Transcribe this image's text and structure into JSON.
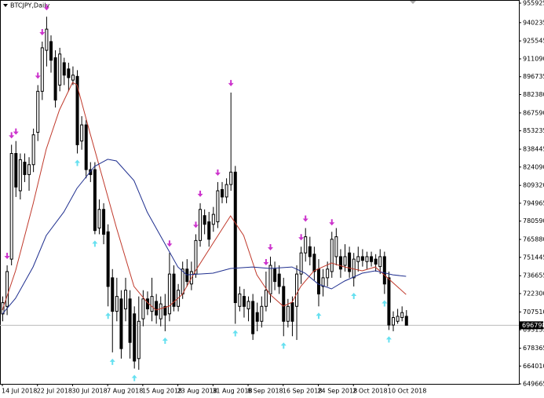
{
  "chart_data": {
    "type": "candlestick",
    "title": "BTCJPY,Daily",
    "categories": [
      "14 Jul 2018",
      null,
      null,
      null,
      null,
      null,
      null,
      null,
      "22 Jul 2018",
      null,
      null,
      null,
      null,
      null,
      null,
      null,
      "30 Jul 2018",
      null,
      null,
      null,
      null,
      null,
      null,
      null,
      "7 Aug 2018",
      null,
      null,
      null,
      null,
      null,
      null,
      null,
      "15 Aug 2018",
      null,
      null,
      null,
      null,
      null,
      null,
      null,
      "23 Aug 2018",
      null,
      null,
      null,
      null,
      null,
      null,
      null,
      "31 Aug 2018",
      null,
      null,
      null,
      null,
      null,
      null,
      null,
      "8 Sep 2018",
      null,
      null,
      null,
      null,
      null,
      null,
      null,
      "16 Sep 2018",
      null,
      null,
      null,
      null,
      null,
      null,
      null,
      "24 Sep 2018",
      null,
      null,
      null,
      null,
      null,
      null,
      null,
      "2 Oct 2018",
      null,
      null,
      null,
      null,
      null,
      null,
      null,
      "10 Oct 2018",
      null,
      null,
      null,
      null
    ],
    "open": [
      705900,
      712000,
      750000,
      835000,
      805000,
      828000,
      818000,
      826000,
      852000,
      885000,
      918000,
      925000,
      912000,
      890000,
      908000,
      903000,
      894000,
      897000,
      845000,
      858000,
      822000,
      822000,
      775000,
      790000,
      772000,
      735000,
      708000,
      718000,
      710000,
      718000,
      706000,
      670000,
      702000,
      718000,
      708000,
      716000,
      702000,
      712000,
      706000,
      738000,
      712000,
      722000,
      742000,
      730000,
      738000,
      765000,
      785000,
      780000,
      778000,
      780000,
      806000,
      800000,
      810000,
      820000,
      712000,
      720000,
      710000,
      716000,
      707000,
      700000,
      712000,
      722000,
      742000,
      738000,
      728000,
      700000,
      715000,
      712000,
      738000,
      755000,
      760000,
      754000,
      742000,
      728000,
      735000,
      740000,
      752000,
      752000,
      745000,
      755000,
      735000,
      748000,
      752000,
      748000,
      752000,
      750000,
      744000,
      752000,
      735000,
      697000,
      700000,
      703000,
      704000
    ],
    "high": [
      720000,
      745000,
      842000,
      845000,
      835000,
      835000,
      832000,
      855000,
      890000,
      925000,
      945000,
      930000,
      918000,
      920000,
      912000,
      908000,
      905000,
      902000,
      865000,
      862000,
      828000,
      828000,
      798000,
      795000,
      778000,
      742000,
      735000,
      725000,
      735000,
      725000,
      712000,
      720000,
      725000,
      724000,
      735000,
      722000,
      720000,
      722000,
      755000,
      745000,
      730000,
      748000,
      750000,
      748000,
      770000,
      795000,
      790000,
      788000,
      792000,
      812000,
      812000,
      815000,
      884000,
      825000,
      728000,
      726000,
      720000,
      722000,
      715000,
      720000,
      740000,
      752000,
      748000,
      745000,
      735000,
      718000,
      720000,
      745000,
      760000,
      775000,
      768000,
      760000,
      750000,
      742000,
      748000,
      772000,
      775000,
      758000,
      762000,
      760000,
      755000,
      760000,
      758000,
      756000,
      756000,
      754000,
      758000,
      756000,
      740000,
      708000,
      710000,
      712000,
      709000
    ],
    "low": [
      700000,
      705000,
      745000,
      800000,
      798000,
      812000,
      805000,
      820000,
      845000,
      878000,
      905000,
      900000,
      872000,
      885000,
      890000,
      885000,
      890000,
      835000,
      838000,
      815000,
      812000,
      770000,
      770000,
      762000,
      712000,
      675000,
      700000,
      670000,
      700000,
      670000,
      662000,
      661000,
      696000,
      705000,
      700000,
      698000,
      696000,
      692000,
      700000,
      708000,
      708000,
      718000,
      728000,
      725000,
      735000,
      760000,
      770000,
      760000,
      772000,
      775000,
      795000,
      795000,
      805000,
      698000,
      708000,
      703000,
      700000,
      685000,
      692000,
      695000,
      708000,
      715000,
      725000,
      722000,
      688000,
      695000,
      688000,
      685000,
      730000,
      748000,
      745000,
      733000,
      712000,
      720000,
      728000,
      735000,
      745000,
      735000,
      740000,
      735000,
      728000,
      740000,
      744000,
      742000,
      744000,
      740000,
      738000,
      722000,
      693000,
      692000,
      698000,
      700000,
      698000
    ],
    "close": [
      715000,
      740000,
      835000,
      808000,
      830000,
      818000,
      826000,
      850000,
      885000,
      920000,
      935000,
      910000,
      878000,
      915000,
      898000,
      896000,
      898000,
      842000,
      858000,
      822000,
      818000,
      773000,
      790000,
      770000,
      728000,
      708000,
      720000,
      678000,
      725000,
      683000,
      668000,
      700000,
      718000,
      710000,
      720000,
      705000,
      714000,
      705000,
      738000,
      712000,
      725000,
      742000,
      732000,
      740000,
      765000,
      790000,
      778000,
      766000,
      786000,
      805000,
      800000,
      810000,
      820000,
      715000,
      722000,
      712000,
      716000,
      690000,
      700000,
      712000,
      725000,
      745000,
      732000,
      728000,
      700000,
      712000,
      700000,
      738000,
      755000,
      768000,
      752000,
      740000,
      722000,
      735000,
      742000,
      766000,
      768000,
      742000,
      752000,
      740000,
      750000,
      752000,
      749000,
      752000,
      748000,
      746000,
      752000,
      730000,
      697000,
      703000,
      704000,
      707000,
      696798
    ],
    "current_price": 696798,
    "lines": [
      {
        "color": "#c0392b",
        "x": [
          0,
          3,
          7,
          10,
          13,
          16,
          17,
          20,
          23,
          26,
          30,
          33,
          35,
          38,
          41,
          44,
          48,
          52,
          55,
          58,
          61,
          64,
          66,
          68,
          71,
          75,
          78,
          82,
          85,
          88,
          92
        ],
        "values": [
          709000,
          740600,
          794300,
          838500,
          870000,
          892100,
          890200,
          851100,
          813200,
          775300,
          728000,
          715300,
          709000,
          712200,
          721600,
          740600,
          762700,
          784800,
          769000,
          737400,
          721600,
          712200,
          715300,
          728000,
          740600,
          746900,
          743700,
          740600,
          743700,
          734300,
          721600
        ]
      },
      {
        "color": "#1f2f8f",
        "x": [
          0,
          3,
          7,
          10,
          14,
          17,
          21,
          24,
          26,
          30,
          33,
          37,
          40,
          42,
          48,
          52,
          57,
          61,
          66,
          69,
          72,
          75,
          78,
          82,
          85,
          89,
          92
        ],
        "values": [
          705900,
          718500,
          743700,
          769000,
          787900,
          806900,
          824600,
          830300,
          829000,
          813200,
          787900,
          762700,
          743700,
          737400,
          738700,
          742500,
          743700,
          742500,
          743700,
          738700,
          729900,
          726100,
          732400,
          738700,
          740600,
          737400,
          736200
        ]
      }
    ],
    "arrows_down": [
      1,
      2,
      3,
      8,
      9,
      10,
      38,
      44,
      45,
      49,
      52,
      60,
      61,
      68,
      69,
      75
    ],
    "arrows_up": [
      17,
      21,
      24,
      25,
      30,
      37,
      53,
      64,
      72,
      80,
      87,
      88
    ],
    "ylim": [
      649665,
      958450
    ],
    "yticks": [
      955925,
      940235,
      925545,
      911090,
      896735,
      882380,
      867590,
      853235,
      838445,
      824090,
      809320,
      794965,
      780590,
      765880,
      751445,
      736655,
      722300,
      707510,
      693155,
      678365,
      664010,
      649665
    ]
  }
}
